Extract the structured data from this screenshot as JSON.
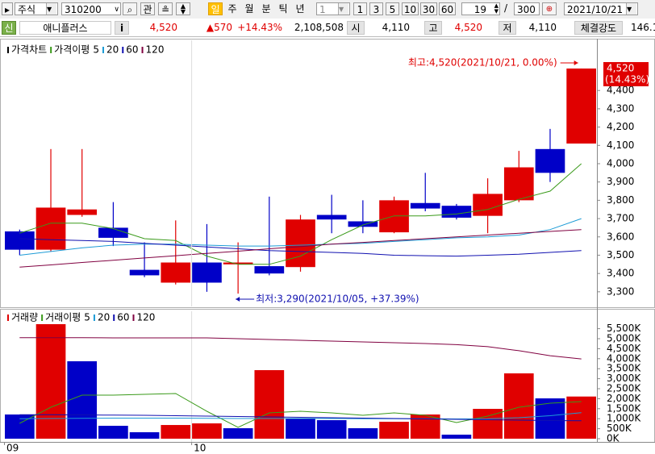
{
  "toolbar": {
    "market": "주식",
    "code": "310200",
    "interest": "관",
    "periods": [
      "일",
      "주",
      "월",
      "분",
      "틱",
      "년"
    ],
    "interval": "1",
    "intervals": [
      "1",
      "3",
      "5",
      "10",
      "30",
      "60"
    ],
    "count": "19",
    "separator": "/",
    "total": "300",
    "date": "2021/10/21"
  },
  "quote": {
    "badge": "신",
    "name": "애니플러스",
    "info": "i",
    "price": "4,520",
    "change": "▲570",
    "change_rate": "+14.43%",
    "volume": "2,108,508",
    "open_label": "시",
    "open": "4,110",
    "high_label": "고",
    "high": "4,520",
    "low_label": "저",
    "low": "4,110",
    "strength_label": "체결강도",
    "strength": "146.1"
  },
  "chart_data": [
    {
      "type": "candlestick",
      "title": "가격차트",
      "legend_title": "가격이평",
      "open": [
        3630,
        3530,
        3720,
        3650,
        3420,
        3350,
        3460,
        3450,
        3440,
        3435,
        3720,
        3685,
        3625,
        3785,
        3770,
        3715,
        3800,
        4080,
        4110
      ],
      "high": [
        3640,
        4080,
        4080,
        3790,
        3570,
        3690,
        3670,
        3570,
        3820,
        3720,
        3830,
        3800,
        3820,
        3950,
        3780,
        3920,
        4070,
        4190,
        4520
      ],
      "low": [
        3500,
        3520,
        3710,
        3550,
        3380,
        3340,
        3300,
        3290,
        3390,
        3410,
        3620,
        3620,
        3620,
        3740,
        3695,
        3620,
        3790,
        3900,
        4110
      ],
      "close": [
        3530,
        3760,
        3750,
        3595,
        3390,
        3460,
        3350,
        3460,
        3400,
        3695,
        3695,
        3655,
        3800,
        3755,
        3705,
        3835,
        3980,
        3950,
        4520
      ],
      "up_color": "#e00000",
      "down_color": "#0000c8",
      "series": [
        {
          "name": "5",
          "color": "#3a9a1a",
          "values": [
            3620,
            3675,
            3675,
            3645,
            3590,
            3580,
            3495,
            3450,
            3450,
            3495,
            3585,
            3665,
            3715,
            3715,
            3725,
            3750,
            3805,
            3850,
            4000
          ]
        },
        {
          "name": "20",
          "color": "#1c9bd6",
          "values": [
            3500,
            3520,
            3540,
            3555,
            3560,
            3560,
            3555,
            3550,
            3550,
            3555,
            3560,
            3565,
            3575,
            3585,
            3595,
            3600,
            3610,
            3640,
            3700
          ]
        },
        {
          "name": "60",
          "color": "#1010b0",
          "values": [
            3590,
            3585,
            3580,
            3575,
            3565,
            3555,
            3545,
            3535,
            3525,
            3520,
            3515,
            3510,
            3500,
            3497,
            3495,
            3500,
            3505,
            3515,
            3525
          ]
        },
        {
          "name": "120",
          "color": "#800040",
          "values": [
            3435,
            3447,
            3460,
            3472,
            3485,
            3497,
            3510,
            3522,
            3535,
            3547,
            3560,
            3570,
            3580,
            3590,
            3600,
            3610,
            3620,
            3630,
            3640
          ]
        }
      ],
      "ylim": [
        3220,
        4630
      ],
      "yticks": [
        {
          "value": 3300,
          "label": "3,300"
        },
        {
          "value": 3400,
          "label": "3,400"
        },
        {
          "value": 3500,
          "label": "3,500"
        },
        {
          "value": 3600,
          "label": "3,600"
        },
        {
          "value": 3700,
          "label": "3,700"
        },
        {
          "value": 3800,
          "label": "3,800"
        },
        {
          "value": 3900,
          "label": "3,900"
        },
        {
          "value": 4000,
          "label": "4,000"
        },
        {
          "value": 4100,
          "label": "4,100"
        },
        {
          "value": 4200,
          "label": "4,200"
        },
        {
          "value": 4300,
          "label": "4,300"
        },
        {
          "value": 4400,
          "label": "4,400"
        }
      ],
      "annotations": {
        "high": "최고:4,520(2021/10/21, 0.00%)",
        "low": "최저:3,290(2021/10/05, +37.39%)",
        "last_price": "4,520",
        "last_change": "(14.43%)"
      }
    },
    {
      "type": "bar",
      "title": "거래량",
      "title_color": "#e00000",
      "legend_title": "거래이평",
      "categories": [
        "09",
        null,
        null,
        null,
        null,
        null,
        "10",
        null,
        null,
        null,
        null,
        null,
        null,
        null,
        null,
        null,
        null,
        null,
        null
      ],
      "values": [
        1210,
        5726,
        3871,
        645,
        323,
        685,
        766,
        524,
        3427,
        1008,
        927,
        524,
        847,
        1210,
        202,
        1492,
        3266,
        2016,
        2108.5
      ],
      "colors": [
        "#0000c8",
        "#e00000",
        "#0000c8",
        "#0000c8",
        "#0000c8",
        "#e00000",
        "#e00000",
        "#0000c8",
        "#e00000",
        "#0000c8",
        "#0000c8",
        "#0000c8",
        "#e00000",
        "#e00000",
        "#0000c8",
        "#e00000",
        "#e00000",
        "#0000c8",
        "#e00000"
      ],
      "series": [
        {
          "name": "5",
          "color": "#3a9a1a",
          "values": [
            766,
            1573,
            2177,
            2177,
            2218,
            2258,
            1371,
            565,
            1290,
            1371,
            1290,
            1169,
            1290,
            1169,
            806,
            1129,
            1573,
            1774,
            1855
          ]
        },
        {
          "name": "20",
          "color": "#1c9bd6",
          "values": [
            1000,
            1010,
            1020,
            1030,
            1030,
            1030,
            1020,
            1010,
            1010,
            1010,
            1010,
            1000,
            1000,
            1000,
            990,
            1000,
            1050,
            1150,
            1300
          ]
        },
        {
          "name": "60",
          "color": "#1010b0",
          "values": [
            1200,
            1200,
            1190,
            1180,
            1170,
            1150,
            1130,
            1110,
            1090,
            1070,
            1050,
            1030,
            1010,
            990,
            970,
            950,
            930,
            910,
            900
          ]
        },
        {
          "name": "120",
          "color": "#800040",
          "values": [
            5050,
            5050,
            5050,
            5040,
            5040,
            5040,
            5040,
            5000,
            4960,
            4920,
            4880,
            4840,
            4800,
            4760,
            4700,
            4600,
            4400,
            4150,
            3990
          ]
        }
      ],
      "ylim": [
        -160,
        6290
      ],
      "yticks": [
        {
          "value": 0,
          "label": "0K"
        },
        {
          "value": 500,
          "label": "500K"
        },
        {
          "value": 1000,
          "label": "1,000K"
        },
        {
          "value": 1500,
          "label": "1,500K"
        },
        {
          "value": 2000,
          "label": "2,000K"
        },
        {
          "value": 2500,
          "label": "2,500K"
        },
        {
          "value": 3000,
          "label": "3,000K"
        },
        {
          "value": 3500,
          "label": "3,500K"
        },
        {
          "value": 4000,
          "label": "4,000K"
        },
        {
          "value": 4500,
          "label": "4,500K"
        },
        {
          "value": 5000,
          "label": "5,000K"
        },
        {
          "value": 5500,
          "label": "5,500K"
        }
      ]
    }
  ]
}
